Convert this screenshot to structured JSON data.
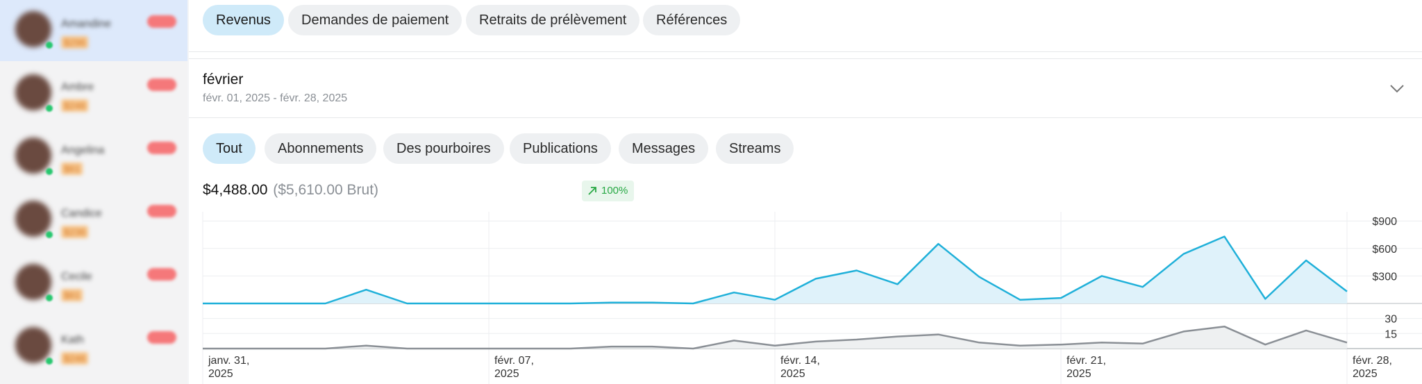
{
  "sidebar": {
    "chats": [
      {
        "name": "Amandine",
        "price": "$296",
        "active": true
      },
      {
        "name": "Ambre",
        "price": "$246",
        "active": false
      },
      {
        "name": "Angelina",
        "price": "$61",
        "active": false
      },
      {
        "name": "Candice",
        "price": "$236",
        "active": false
      },
      {
        "name": "Cecile",
        "price": "$61",
        "active": false
      },
      {
        "name": "Kath",
        "price": "$246",
        "active": false
      }
    ]
  },
  "tabs": [
    {
      "label": "Revenus",
      "active": true
    },
    {
      "label": "Demandes de paiement",
      "active": false
    },
    {
      "label": "Retraits de prélèvement",
      "active": false
    },
    {
      "label": "Références",
      "active": false
    }
  ],
  "period": {
    "title": "février",
    "range": "févr. 01, 2025 - févr. 28, 2025"
  },
  "filters": [
    {
      "label": "Tout",
      "active": true
    },
    {
      "label": "Abonnements",
      "active": false
    },
    {
      "label": "Des pourboires",
      "active": false
    },
    {
      "label": "Publications",
      "active": false
    },
    {
      "label": "Messages",
      "active": false
    },
    {
      "label": "Streams",
      "active": false
    }
  ],
  "summary": {
    "net": "$4,488.00",
    "gross": "($5,610.00 Brut)",
    "trend": "100%"
  },
  "colors": {
    "accent": "#1fb0d9",
    "secondary": "#8a8f95",
    "trend": "#27a844"
  },
  "chart_data": {
    "type": "area",
    "x": [
      "2025-01-31",
      "2025-02-01",
      "2025-02-02",
      "2025-02-03",
      "2025-02-04",
      "2025-02-05",
      "2025-02-06",
      "2025-02-07",
      "2025-02-08",
      "2025-02-09",
      "2025-02-10",
      "2025-02-11",
      "2025-02-12",
      "2025-02-13",
      "2025-02-14",
      "2025-02-15",
      "2025-02-16",
      "2025-02-17",
      "2025-02-18",
      "2025-02-19",
      "2025-02-20",
      "2025-02-21",
      "2025-02-22",
      "2025-02-23",
      "2025-02-24",
      "2025-02-25",
      "2025-02-26",
      "2025-02-27",
      "2025-02-28"
    ],
    "x_tick_labels": [
      {
        "line1": "janv. 31,",
        "line2": "2025"
      },
      {
        "line1": "févr. 07,",
        "line2": "2025"
      },
      {
        "line1": "févr. 14,",
        "line2": "2025"
      },
      {
        "line1": "févr. 21,",
        "line2": "2025"
      },
      {
        "line1": "févr. 28,",
        "line2": "2025"
      }
    ],
    "x_tick_index": [
      0,
      7,
      14,
      21,
      28
    ],
    "panels": [
      {
        "series": [
          {
            "values": [
              0,
              0,
              0,
              0,
              150,
              0,
              0,
              0,
              0,
              0,
              10,
              10,
              0,
              120,
              40,
              270,
              360,
              210,
              650,
              290,
              40,
              60,
              300,
              180,
              540,
              730,
              50,
              470,
              130
            ]
          }
        ],
        "ylim": [
          0,
          1000
        ],
        "y_ticks": [
          300,
          600,
          900
        ],
        "y_tick_labels": [
          "$300",
          "$600",
          "$900"
        ]
      },
      {
        "series": [
          {
            "values": [
              0,
              0,
              0,
              0,
              3,
              0,
              0,
              0,
              0,
              0,
              2,
              2,
              0,
              8,
              3,
              7,
              9,
              12,
              14,
              6,
              3,
              4,
              6,
              5,
              17,
              22,
              4,
              18,
              6
            ]
          }
        ],
        "ylim": [
          0,
          38
        ],
        "y_ticks": [
          15,
          30
        ],
        "y_tick_labels": [
          "15",
          "30"
        ]
      }
    ]
  }
}
